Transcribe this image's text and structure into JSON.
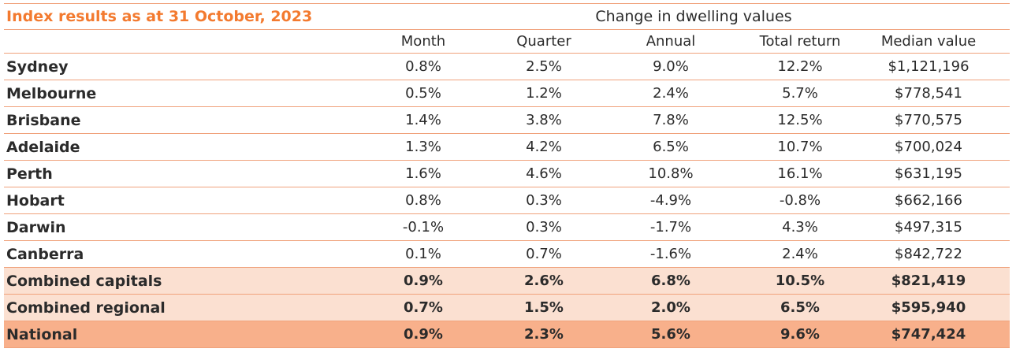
{
  "title": "Index results as at 31 October, 2023",
  "group_header": "Change in dwelling values",
  "columns": [
    "Month",
    "Quarter",
    "Annual",
    "Total return",
    "Median value"
  ],
  "rows": [
    {
      "name": "Sydney",
      "month": "0.8%",
      "quarter": "2.5%",
      "annual": "9.0%",
      "total": "12.2%",
      "median": "$1,121,196"
    },
    {
      "name": "Melbourne",
      "month": "0.5%",
      "quarter": "1.2%",
      "annual": "2.4%",
      "total": "5.7%",
      "median": "$778,541"
    },
    {
      "name": "Brisbane",
      "month": "1.4%",
      "quarter": "3.8%",
      "annual": "7.8%",
      "total": "12.5%",
      "median": "$770,575"
    },
    {
      "name": "Adelaide",
      "month": "1.3%",
      "quarter": "4.2%",
      "annual": "6.5%",
      "total": "10.7%",
      "median": "$700,024"
    },
    {
      "name": "Perth",
      "month": "1.6%",
      "quarter": "4.6%",
      "annual": "10.8%",
      "total": "16.1%",
      "median": "$631,195"
    },
    {
      "name": "Hobart",
      "month": "0.8%",
      "quarter": "0.3%",
      "annual": "-4.9%",
      "total": "-0.8%",
      "median": "$662,166"
    },
    {
      "name": "Darwin",
      "month": "-0.1%",
      "quarter": "0.3%",
      "annual": "-1.7%",
      "total": "4.3%",
      "median": "$497,315"
    },
    {
      "name": "Canberra",
      "month": "0.1%",
      "quarter": "0.7%",
      "annual": "-1.6%",
      "total": "2.4%",
      "median": "$842,722"
    },
    {
      "name": "Combined capitals",
      "month": "0.9%",
      "quarter": "2.6%",
      "annual": "6.8%",
      "total": "10.5%",
      "median": "$821,419"
    },
    {
      "name": "Combined regional",
      "month": "0.7%",
      "quarter": "1.5%",
      "annual": "2.0%",
      "total": "6.5%",
      "median": "$595,940"
    },
    {
      "name": "National",
      "month": "0.9%",
      "quarter": "2.3%",
      "annual": "5.6%",
      "total": "9.6%",
      "median": "$747,424"
    }
  ],
  "colors": {
    "accent": "#f37a2f",
    "rule": "#f0a27c",
    "summary_bg": "#fbe0d1",
    "national_bg": "#f8b08b"
  }
}
